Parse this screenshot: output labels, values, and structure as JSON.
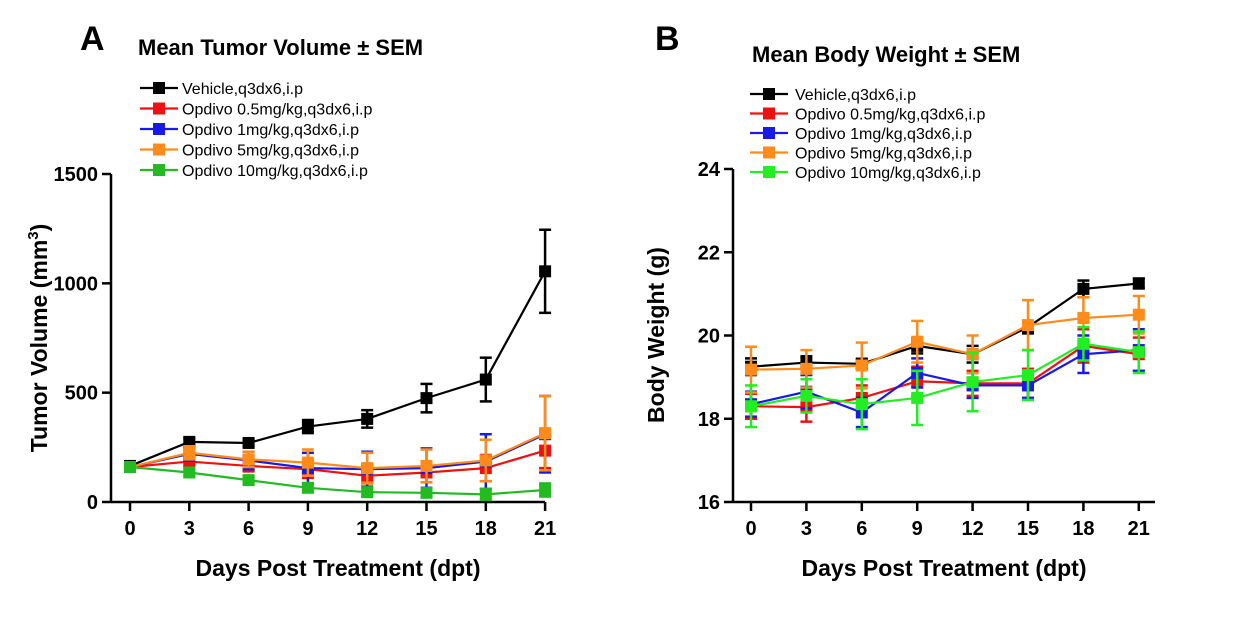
{
  "colors": {
    "black": "#000000",
    "red": "#ee1111",
    "blue": "#1a1ae6",
    "orange": "#ff8c1a",
    "green_a": "#22bb22",
    "green_b": "#22ee22"
  },
  "chart_data": [
    {
      "panel_letter": "A",
      "type": "line",
      "title": "Mean Tumor Volume ± SEM",
      "xlabel": "Days Post Treatment (dpt)",
      "ylabel_main": "Tumor Volume (mm",
      "ylabel_sup": "3",
      "ylabel_close": ")",
      "x": [
        0,
        3,
        6,
        9,
        12,
        15,
        18,
        21
      ],
      "xticks": [
        "0",
        "3",
        "6",
        "9",
        "12",
        "15",
        "18",
        "21"
      ],
      "ylim": [
        0,
        1500
      ],
      "yticks": [
        0,
        500,
        1000,
        1500
      ],
      "ytick_labels": [
        "0",
        "500",
        "1000",
        "1500"
      ],
      "legend_position": "top-left",
      "series": [
        {
          "name": "Vehicle,q3dx6,i.p",
          "color": "#000000",
          "values": [
            165,
            275,
            270,
            345,
            380,
            475,
            560,
            1055
          ],
          "sem": [
            12,
            15,
            15,
            30,
            40,
            65,
            100,
            190
          ]
        },
        {
          "name": "Opdivo 0.5mg/kg,q3dx6,i.p",
          "color": "#ee1111",
          "values": [
            160,
            185,
            165,
            150,
            120,
            135,
            155,
            235
          ],
          "sem": [
            15,
            20,
            25,
            40,
            35,
            45,
            60,
            80
          ]
        },
        {
          "name": "Opdivo 1mg/kg,q3dx6,i.p",
          "color": "#1a1ae6",
          "values": [
            160,
            220,
            190,
            155,
            150,
            155,
            185,
            310
          ],
          "sem": [
            15,
            30,
            40,
            70,
            80,
            90,
            125,
            175
          ]
        },
        {
          "name": "Opdivo 5mg/kg,q3dx6,i.p",
          "color": "#ff8c1a",
          "values": [
            160,
            225,
            195,
            180,
            155,
            165,
            190,
            315
          ],
          "sem": [
            15,
            30,
            35,
            60,
            70,
            75,
            95,
            170
          ]
        },
        {
          "name": "Opdivo 10mg/kg,q3dx6,i.p",
          "color": "#22bb22",
          "values": [
            160,
            135,
            100,
            65,
            45,
            42,
            35,
            55
          ],
          "sem": [
            10,
            15,
            15,
            20,
            20,
            20,
            25,
            30
          ]
        }
      ]
    },
    {
      "panel_letter": "B",
      "type": "line",
      "title": "Mean Body Weight  ± SEM",
      "xlabel": "Days Post Treatment (dpt)",
      "ylabel": "Body Weight (g)",
      "x": [
        0,
        3,
        6,
        9,
        12,
        15,
        18,
        21
      ],
      "xticks": [
        "0",
        "3",
        "6",
        "9",
        "12",
        "15",
        "18",
        "21"
      ],
      "ylim": [
        16,
        24
      ],
      "yticks": [
        16,
        18,
        20,
        22,
        24
      ],
      "ytick_labels": [
        "16",
        "18",
        "20",
        "22",
        "24"
      ],
      "legend_position": "top-left",
      "series": [
        {
          "name": "Vehicle,q3dx6,i.p",
          "color": "#000000",
          "values": [
            19.25,
            19.35,
            19.32,
            19.75,
            19.55,
            20.2,
            21.12,
            21.25
          ],
          "sem": [
            0.2,
            0.15,
            0.12,
            0.18,
            0.2,
            0.15,
            0.2,
            0.12
          ]
        },
        {
          "name": "Opdivo 0.5mg/kg,q3dx6,i.p",
          "color": "#ee1111",
          "values": [
            18.3,
            18.28,
            18.5,
            18.9,
            18.85,
            18.85,
            19.75,
            19.55
          ],
          "sem": [
            0.3,
            0.35,
            0.3,
            0.35,
            0.3,
            0.35,
            0.4,
            0.4
          ]
        },
        {
          "name": "Opdivo 1mg/kg,q3dx6,i.p",
          "color": "#1a1ae6",
          "values": [
            18.35,
            18.65,
            18.15,
            19.1,
            18.8,
            18.8,
            19.55,
            19.65
          ],
          "sem": [
            0.3,
            0.4,
            0.35,
            0.35,
            0.3,
            0.3,
            0.45,
            0.5
          ]
        },
        {
          "name": "Opdivo 5mg/kg,q3dx6,i.p",
          "color": "#ff8c1a",
          "values": [
            19.18,
            19.2,
            19.28,
            19.85,
            19.55,
            20.25,
            20.42,
            20.5
          ],
          "sem": [
            0.55,
            0.45,
            0.55,
            0.5,
            0.45,
            0.6,
            0.5,
            0.45
          ]
        },
        {
          "name": "Opdivo 10mg/kg,q3dx6,i.p",
          "color": "#22ee22",
          "values": [
            18.3,
            18.55,
            18.35,
            18.5,
            18.88,
            19.05,
            19.8,
            19.6
          ],
          "sem": [
            0.5,
            0.4,
            0.6,
            0.65,
            0.7,
            0.6,
            0.4,
            0.5
          ]
        }
      ]
    }
  ]
}
